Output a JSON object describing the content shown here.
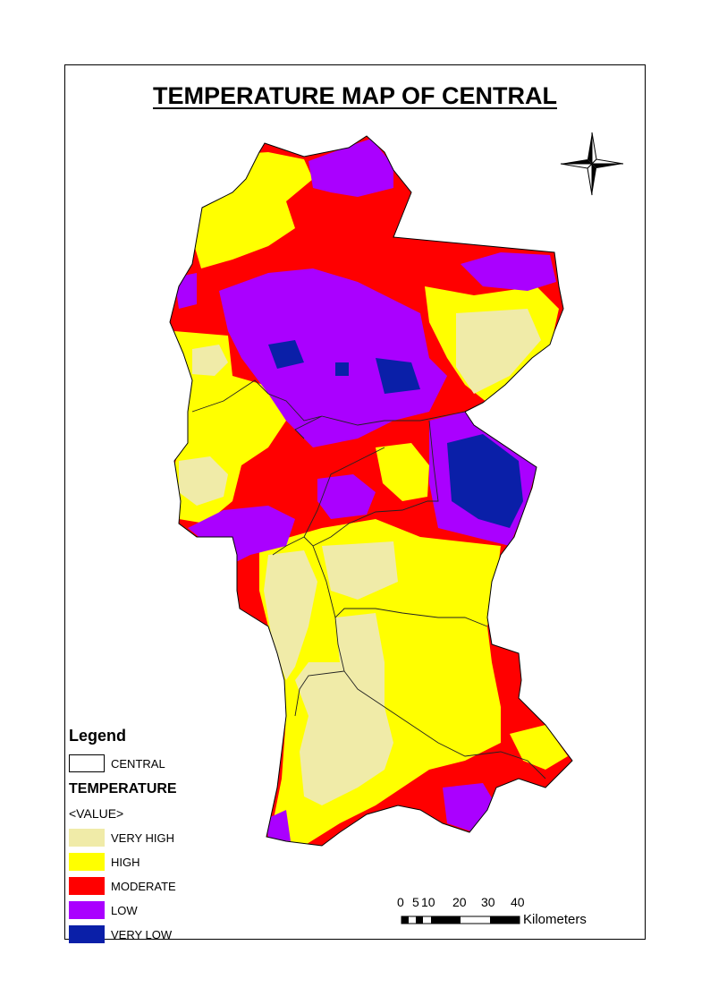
{
  "map": {
    "title": "TEMPERATURE MAP OF CENTRAL"
  },
  "legend": {
    "title": "Legend",
    "boundary_label": "CENTRAL",
    "layer_title": "TEMPERATURE",
    "value_header": "<VALUE>",
    "classes": [
      {
        "label": "VERY HIGH",
        "color": "#f0eba8"
      },
      {
        "label": "HIGH",
        "color": "#ffff00"
      },
      {
        "label": "MODERATE",
        "color": "#ff0000"
      },
      {
        "label": "LOW",
        "color": "#aa00ff"
      },
      {
        "label": "VERY LOW",
        "color": "#0a1fa8"
      }
    ]
  },
  "scale_bar": {
    "ticks": [
      "0",
      "5",
      "10",
      "20",
      "30",
      "40"
    ],
    "unit": "Kilometers"
  },
  "north_arrow": {
    "icon": "compass-rose-icon"
  }
}
